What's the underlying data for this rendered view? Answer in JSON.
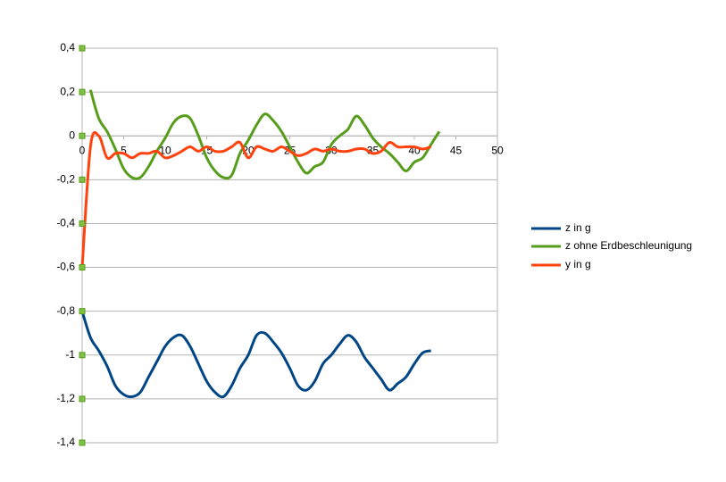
{
  "chart_data": {
    "type": "line",
    "x": [
      0,
      1,
      2,
      3,
      4,
      5,
      6,
      7,
      8,
      9,
      10,
      11,
      12,
      13,
      14,
      15,
      16,
      17,
      18,
      19,
      20,
      21,
      22,
      23,
      24,
      25,
      26,
      27,
      28,
      29,
      30,
      31,
      32,
      33,
      34,
      35,
      36,
      37,
      38,
      39,
      40,
      41,
      42,
      43
    ],
    "series": [
      {
        "name": "z in g",
        "color": "#004586",
        "values": [
          -0.8,
          -0.92,
          -0.98,
          -1.05,
          -1.14,
          -1.18,
          -1.19,
          -1.17,
          -1.1,
          -1.03,
          -0.96,
          -0.92,
          -0.91,
          -0.96,
          -1.04,
          -1.12,
          -1.17,
          -1.19,
          -1.14,
          -1.06,
          -1.0,
          -0.91,
          -0.9,
          -0.94,
          -0.99,
          -1.06,
          -1.14,
          -1.16,
          -1.12,
          -1.04,
          -1.0,
          -0.95,
          -0.91,
          -0.94,
          -1.01,
          -1.06,
          -1.11,
          -1.16,
          -1.13,
          -1.1,
          -1.04,
          -0.99,
          -0.98,
          null
        ]
      },
      {
        "name": "z ohne Erdbeschleunigung",
        "color": "#579d1c",
        "values": [
          null,
          0.21,
          0.08,
          0.02,
          -0.06,
          -0.15,
          -0.19,
          -0.19,
          -0.14,
          -0.07,
          -0.01,
          0.06,
          0.09,
          0.08,
          0.0,
          -0.1,
          -0.16,
          -0.19,
          -0.18,
          -0.08,
          -0.02,
          0.05,
          0.1,
          0.07,
          0.02,
          -0.05,
          -0.12,
          -0.17,
          -0.14,
          -0.12,
          -0.04,
          0.0,
          0.03,
          0.09,
          0.05,
          -0.01,
          -0.05,
          -0.08,
          -0.12,
          -0.16,
          -0.12,
          -0.1,
          -0.04,
          0.02
        ]
      },
      {
        "name": "y in g",
        "color": "#ff420e",
        "values": [
          -0.6,
          -0.05,
          0.0,
          -0.1,
          -0.08,
          -0.08,
          -0.1,
          -0.08,
          -0.08,
          -0.07,
          -0.1,
          -0.09,
          -0.07,
          -0.05,
          -0.07,
          -0.05,
          -0.07,
          -0.07,
          -0.05,
          -0.03,
          -0.1,
          -0.05,
          -0.06,
          -0.07,
          -0.05,
          -0.07,
          -0.09,
          -0.08,
          -0.06,
          -0.07,
          -0.06,
          -0.07,
          -0.07,
          -0.06,
          -0.06,
          -0.08,
          -0.07,
          -0.03,
          -0.05,
          -0.05,
          -0.05,
          -0.06,
          -0.05,
          null
        ]
      }
    ],
    "xlim": [
      0,
      50
    ],
    "xticks": [
      0,
      5,
      10,
      15,
      20,
      25,
      30,
      35,
      40,
      45,
      50
    ],
    "ylim": [
      -1.4,
      0.4
    ],
    "yticks": [
      {
        "value": 0.4,
        "label": "0,4"
      },
      {
        "value": 0.2,
        "label": "0,2"
      },
      0,
      {
        "value": -0.2,
        "label": "-0,2"
      },
      {
        "value": -0.4,
        "label": "-0,4"
      },
      {
        "value": -0.6,
        "label": "-0,6"
      },
      {
        "value": -0.8,
        "label": "-0,8"
      },
      -1,
      {
        "value": -1.2,
        "label": "-1,2"
      },
      {
        "value": -1.4,
        "label": "-1,4"
      }
    ],
    "grid": true,
    "legend": "right"
  }
}
